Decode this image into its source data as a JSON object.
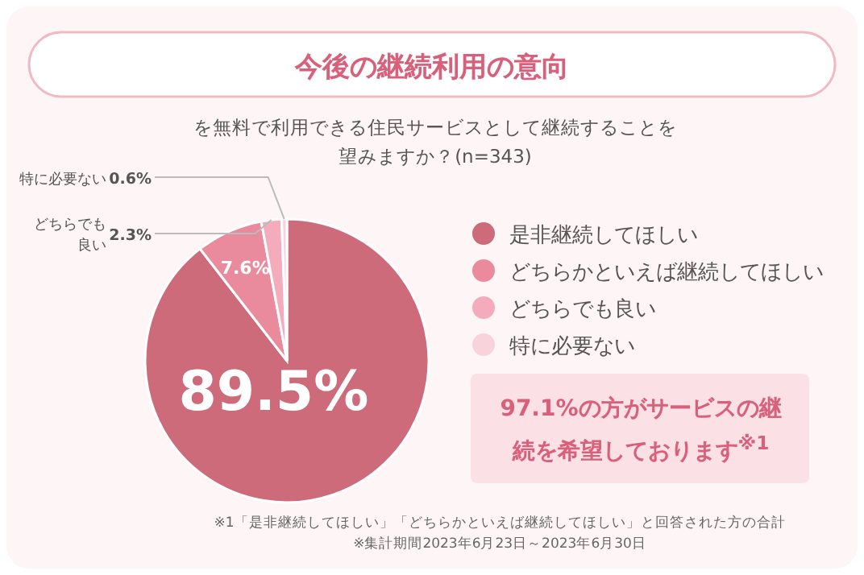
{
  "chart_data": {
    "type": "pie",
    "title": "今後の継続利用の意向",
    "subtitle": "を無料で利用できる住民サービスとして継続することを望みますか？(n=343)",
    "categories": [
      "是非継続してほしい",
      "どちらかといえば継続してほしい",
      "どちらでも良い",
      "特に必要ない"
    ],
    "values": [
      89.5,
      7.6,
      2.3,
      0.6
    ],
    "colors": [
      "#cd6b7a",
      "#e98b9c",
      "#f4acbd",
      "#f9d3dc"
    ],
    "value_labels": [
      "89.5%",
      "7.6%",
      "2.3%",
      "0.6%"
    ],
    "legend": "right",
    "annotations": [
      "97.1%の方がサービスの継続を希望しております$^{※1}$",
      "※1「是非継続してほしい」「どちらかといえば継続してほしい」と回答された方の合計",
      "※集計期間2023年6月23日～2023年6月30日"
    ]
  }
}
